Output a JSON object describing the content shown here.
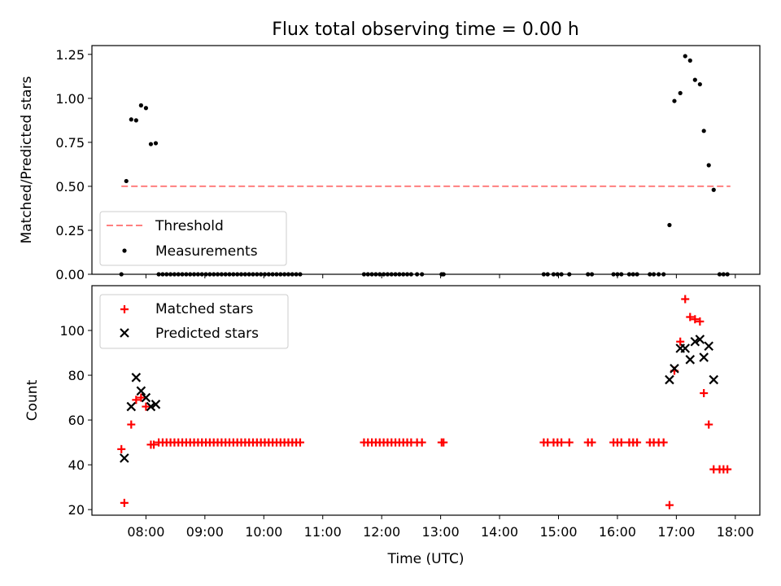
{
  "chart_data": [
    {
      "type": "scatter",
      "title": "Flux total observing time = 0.00 h",
      "xlabel": "",
      "ylabel": "Matched/Predicted stars",
      "xlim": [
        "07:05",
        "18:25"
      ],
      "ylim": [
        0,
        1.3
      ],
      "yticks": [
        "0.00",
        "0.25",
        "0.50",
        "0.75",
        "1.00",
        "1.25"
      ],
      "ytick_values": [
        0,
        0.25,
        0.5,
        0.75,
        1.0,
        1.25
      ],
      "xticks_shown": false,
      "legend_position": "lower-left",
      "threshold": {
        "name": "Threshold",
        "value": 0.5,
        "x_start": "07:35",
        "x_end": "17:55",
        "color": "#ff7f7f",
        "style": "dashed"
      },
      "series": [
        {
          "name": "Measurements",
          "color": "#000000",
          "marker": "dot",
          "points": [
            [
              "07:35",
              0.0
            ],
            [
              "07:40",
              0.53
            ],
            [
              "07:45",
              0.88
            ],
            [
              "07:50",
              0.875
            ],
            [
              "07:55",
              0.96
            ],
            [
              "08:00",
              0.945
            ],
            [
              "08:05",
              0.74
            ],
            [
              "08:10",
              0.745
            ],
            [
              "08:13",
              0.0
            ],
            [
              "08:17",
              0.0
            ],
            [
              "08:21",
              0.0
            ],
            [
              "08:25",
              0.0
            ],
            [
              "08:29",
              0.0
            ],
            [
              "08:33",
              0.0
            ],
            [
              "08:37",
              0.0
            ],
            [
              "08:41",
              0.0
            ],
            [
              "08:45",
              0.0
            ],
            [
              "08:49",
              0.0
            ],
            [
              "08:53",
              0.0
            ],
            [
              "08:57",
              0.0
            ],
            [
              "09:01",
              0.0
            ],
            [
              "09:05",
              0.0
            ],
            [
              "09:09",
              0.0
            ],
            [
              "09:13",
              0.0
            ],
            [
              "09:17",
              0.0
            ],
            [
              "09:21",
              0.0
            ],
            [
              "09:25",
              0.0
            ],
            [
              "09:29",
              0.0
            ],
            [
              "09:33",
              0.0
            ],
            [
              "09:37",
              0.0
            ],
            [
              "09:41",
              0.0
            ],
            [
              "09:45",
              0.0
            ],
            [
              "09:49",
              0.0
            ],
            [
              "09:53",
              0.0
            ],
            [
              "09:57",
              0.0
            ],
            [
              "10:01",
              0.0
            ],
            [
              "10:05",
              0.0
            ],
            [
              "10:09",
              0.0
            ],
            [
              "10:13",
              0.0
            ],
            [
              "10:17",
              0.0
            ],
            [
              "10:21",
              0.0
            ],
            [
              "10:25",
              0.0
            ],
            [
              "10:29",
              0.0
            ],
            [
              "10:33",
              0.0
            ],
            [
              "10:37",
              0.0
            ],
            [
              "11:42",
              0.0
            ],
            [
              "11:46",
              0.0
            ],
            [
              "11:50",
              0.0
            ],
            [
              "11:54",
              0.0
            ],
            [
              "11:58",
              0.0
            ],
            [
              "12:02",
              0.0
            ],
            [
              "12:06",
              0.0
            ],
            [
              "12:10",
              0.0
            ],
            [
              "12:14",
              0.0
            ],
            [
              "12:18",
              0.0
            ],
            [
              "12:22",
              0.0
            ],
            [
              "12:26",
              0.0
            ],
            [
              "12:30",
              0.0
            ],
            [
              "12:36",
              0.0
            ],
            [
              "12:41",
              0.0
            ],
            [
              "13:01",
              0.0
            ],
            [
              "13:03",
              0.0
            ],
            [
              "14:45",
              0.0
            ],
            [
              "14:49",
              0.0
            ],
            [
              "14:55",
              0.0
            ],
            [
              "14:59",
              0.0
            ],
            [
              "15:03",
              0.0
            ],
            [
              "15:11",
              0.0
            ],
            [
              "15:30",
              0.0
            ],
            [
              "15:34",
              0.0
            ],
            [
              "15:56",
              0.0
            ],
            [
              "16:00",
              0.0
            ],
            [
              "16:04",
              0.0
            ],
            [
              "16:12",
              0.0
            ],
            [
              "16:16",
              0.0
            ],
            [
              "16:20",
              0.0
            ],
            [
              "16:33",
              0.0
            ],
            [
              "16:37",
              0.0
            ],
            [
              "16:42",
              0.0
            ],
            [
              "16:47",
              0.0
            ],
            [
              "16:53",
              0.28
            ],
            [
              "16:58",
              0.985
            ],
            [
              "17:04",
              1.03
            ],
            [
              "17:09",
              1.24
            ],
            [
              "17:14",
              1.215
            ],
            [
              "17:19",
              1.105
            ],
            [
              "17:24",
              1.08
            ],
            [
              "17:28",
              0.815
            ],
            [
              "17:33",
              0.62
            ],
            [
              "17:38",
              0.48
            ],
            [
              "17:44",
              0.0
            ],
            [
              "17:48",
              0.0
            ],
            [
              "17:52",
              0.0
            ]
          ]
        }
      ]
    },
    {
      "type": "scatter",
      "title": "",
      "xlabel": "Time (UTC)",
      "ylabel": "Count",
      "xlim": [
        "07:05",
        "18:25"
      ],
      "ylim": [
        17.5,
        120
      ],
      "yticks": [
        "20",
        "40",
        "60",
        "80",
        "100"
      ],
      "ytick_values": [
        20,
        40,
        60,
        80,
        100
      ],
      "xticks": [
        "08:00",
        "09:00",
        "10:00",
        "11:00",
        "12:00",
        "13:00",
        "14:00",
        "15:00",
        "16:00",
        "17:00",
        "18:00"
      ],
      "legend_position": "upper-left",
      "series": [
        {
          "name": "Matched stars",
          "color": "#ff0000",
          "marker": "plus",
          "points": [
            [
              "07:35",
              47
            ],
            [
              "07:38",
              23
            ],
            [
              "07:45",
              58
            ],
            [
              "07:50",
              69
            ],
            [
              "07:55",
              70
            ],
            [
              "08:00",
              66
            ],
            [
              "08:05",
              49
            ],
            [
              "08:08",
              49
            ],
            [
              "08:13",
              50
            ],
            [
              "08:17",
              50
            ],
            [
              "08:21",
              50
            ],
            [
              "08:25",
              50
            ],
            [
              "08:29",
              50
            ],
            [
              "08:33",
              50
            ],
            [
              "08:37",
              50
            ],
            [
              "08:41",
              50
            ],
            [
              "08:45",
              50
            ],
            [
              "08:49",
              50
            ],
            [
              "08:53",
              50
            ],
            [
              "08:57",
              50
            ],
            [
              "09:01",
              50
            ],
            [
              "09:05",
              50
            ],
            [
              "09:09",
              50
            ],
            [
              "09:13",
              50
            ],
            [
              "09:17",
              50
            ],
            [
              "09:21",
              50
            ],
            [
              "09:25",
              50
            ],
            [
              "09:29",
              50
            ],
            [
              "09:33",
              50
            ],
            [
              "09:37",
              50
            ],
            [
              "09:41",
              50
            ],
            [
              "09:45",
              50
            ],
            [
              "09:49",
              50
            ],
            [
              "09:53",
              50
            ],
            [
              "09:57",
              50
            ],
            [
              "10:01",
              50
            ],
            [
              "10:05",
              50
            ],
            [
              "10:09",
              50
            ],
            [
              "10:13",
              50
            ],
            [
              "10:17",
              50
            ],
            [
              "10:21",
              50
            ],
            [
              "10:25",
              50
            ],
            [
              "10:29",
              50
            ],
            [
              "10:33",
              50
            ],
            [
              "10:37",
              50
            ],
            [
              "11:42",
              50
            ],
            [
              "11:46",
              50
            ],
            [
              "11:50",
              50
            ],
            [
              "11:54",
              50
            ],
            [
              "11:58",
              50
            ],
            [
              "12:02",
              50
            ],
            [
              "12:06",
              50
            ],
            [
              "12:10",
              50
            ],
            [
              "12:14",
              50
            ],
            [
              "12:18",
              50
            ],
            [
              "12:22",
              50
            ],
            [
              "12:26",
              50
            ],
            [
              "12:30",
              50
            ],
            [
              "12:36",
              50
            ],
            [
              "12:41",
              50
            ],
            [
              "13:01",
              50
            ],
            [
              "13:03",
              50
            ],
            [
              "14:45",
              50
            ],
            [
              "14:49",
              50
            ],
            [
              "14:55",
              50
            ],
            [
              "14:59",
              50
            ],
            [
              "15:03",
              50
            ],
            [
              "15:11",
              50
            ],
            [
              "15:30",
              50
            ],
            [
              "15:34",
              50
            ],
            [
              "15:56",
              50
            ],
            [
              "16:00",
              50
            ],
            [
              "16:04",
              50
            ],
            [
              "16:12",
              50
            ],
            [
              "16:16",
              50
            ],
            [
              "16:20",
              50
            ],
            [
              "16:33",
              50
            ],
            [
              "16:37",
              50
            ],
            [
              "16:42",
              50
            ],
            [
              "16:47",
              50
            ],
            [
              "16:53",
              22
            ],
            [
              "16:58",
              82
            ],
            [
              "17:04",
              95
            ],
            [
              "17:09",
              114
            ],
            [
              "17:14",
              106
            ],
            [
              "17:19",
              105
            ],
            [
              "17:24",
              104
            ],
            [
              "17:28",
              72
            ],
            [
              "17:33",
              58
            ],
            [
              "17:38",
              38
            ],
            [
              "17:44",
              38
            ],
            [
              "17:48",
              38
            ],
            [
              "17:52",
              38
            ]
          ]
        },
        {
          "name": "Predicted stars",
          "color": "#000000",
          "marker": "x",
          "points": [
            [
              "07:38",
              43
            ],
            [
              "07:45",
              66
            ],
            [
              "07:50",
              79
            ],
            [
              "07:55",
              73
            ],
            [
              "08:00",
              70
            ],
            [
              "08:05",
              66
            ],
            [
              "08:10",
              67
            ],
            [
              "16:53",
              78
            ],
            [
              "16:58",
              83
            ],
            [
              "17:04",
              92
            ],
            [
              "17:09",
              92
            ],
            [
              "17:14",
              87
            ],
            [
              "17:19",
              95
            ],
            [
              "17:24",
              96
            ],
            [
              "17:28",
              88
            ],
            [
              "17:33",
              93
            ],
            [
              "17:38",
              78
            ]
          ]
        }
      ]
    }
  ]
}
